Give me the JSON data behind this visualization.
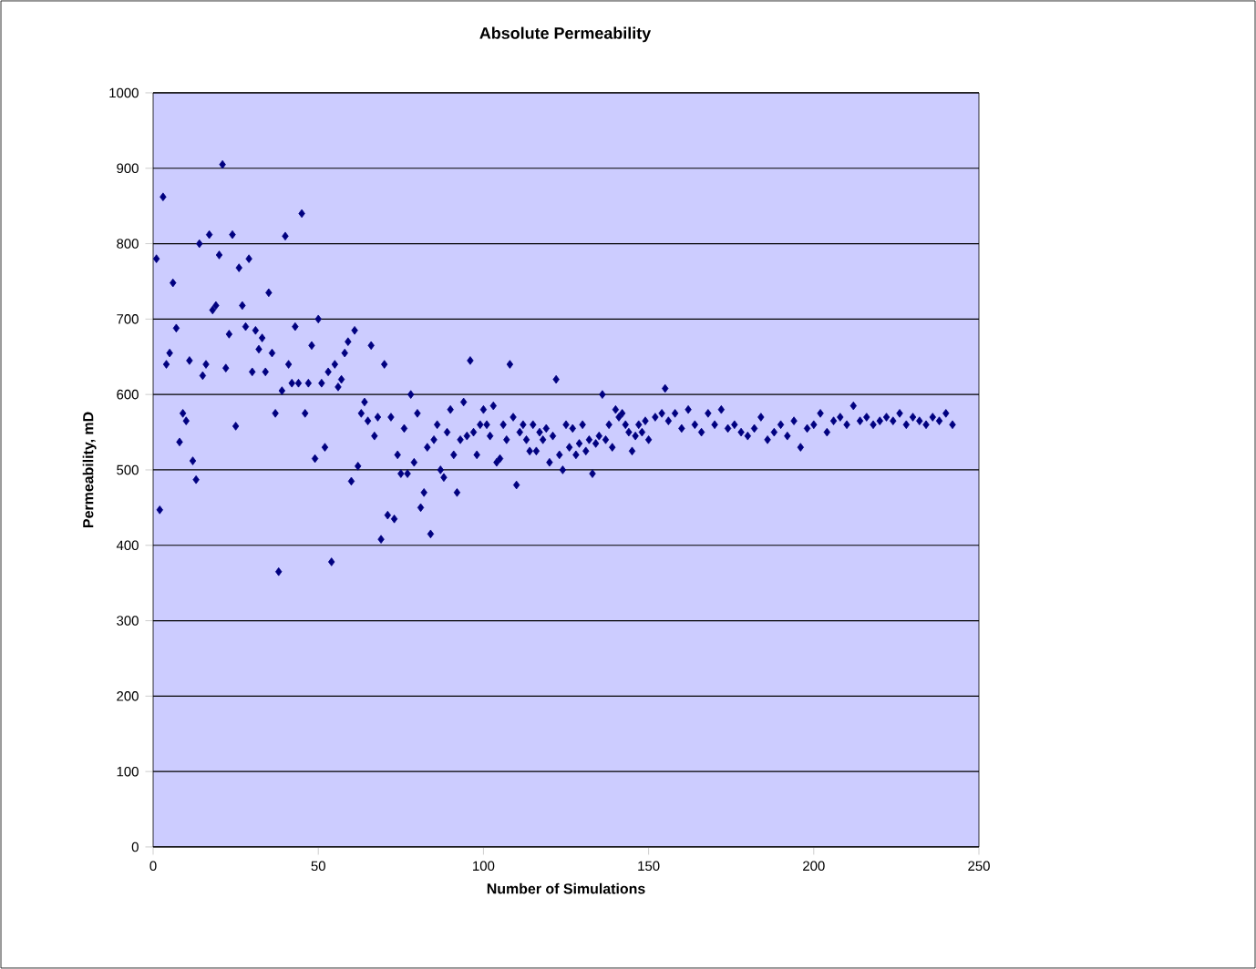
{
  "chart_data": {
    "type": "scatter",
    "title": "Absolute Permeability",
    "xlabel": "Number of Simulations",
    "ylabel": "Permeability, mD",
    "x": [
      1,
      2,
      3,
      4,
      5,
      6,
      7,
      8,
      9,
      10,
      11,
      12,
      13,
      14,
      15,
      16,
      17,
      18,
      19,
      20,
      21,
      22,
      23,
      24,
      25,
      26,
      27,
      28,
      29,
      30,
      31,
      32,
      33,
      34,
      35,
      36,
      37,
      38,
      39,
      40,
      41,
      42,
      43,
      44,
      45,
      46,
      47,
      48,
      49,
      50,
      51,
      52,
      53,
      54,
      55,
      56,
      57,
      58,
      59,
      60,
      61,
      62,
      63,
      64,
      65,
      66,
      67,
      68,
      69,
      70,
      71,
      72,
      73,
      74,
      75,
      76,
      77,
      78,
      79,
      80,
      81,
      82,
      83,
      84,
      85,
      86,
      87,
      88,
      89,
      90,
      91,
      92,
      93,
      94,
      95,
      96,
      97,
      98,
      99,
      100,
      101,
      102,
      103,
      104,
      105,
      106,
      107,
      108,
      109,
      110,
      111,
      112,
      113,
      114,
      115,
      116,
      117,
      118,
      119,
      120,
      121,
      122,
      123,
      124,
      125,
      126,
      127,
      128,
      129,
      130,
      131,
      132,
      133,
      134,
      135,
      136,
      137,
      138,
      139,
      140,
      141,
      142,
      143,
      144,
      145,
      146,
      147,
      148,
      149,
      150,
      152,
      154,
      155,
      156,
      158,
      160,
      162,
      164,
      166,
      168,
      170,
      172,
      174,
      176,
      178,
      180,
      182,
      184,
      186,
      188,
      190,
      192,
      194,
      196,
      198,
      200,
      202,
      204,
      206,
      208,
      210,
      212,
      214,
      216,
      218,
      220,
      222,
      224,
      226,
      228,
      230,
      232,
      234,
      236,
      238,
      240,
      242
    ],
    "values": [
      780,
      447,
      862,
      640,
      655,
      748,
      688,
      537,
      575,
      565,
      645,
      512,
      487,
      800,
      625,
      640,
      812,
      712,
      718,
      785,
      905,
      635,
      680,
      812,
      558,
      768,
      718,
      690,
      780,
      630,
      685,
      660,
      675,
      630,
      735,
      655,
      575,
      365,
      605,
      810,
      640,
      615,
      690,
      615,
      840,
      575,
      615,
      665,
      515,
      700,
      615,
      530,
      630,
      378,
      640,
      610,
      620,
      655,
      670,
      485,
      685,
      505,
      575,
      590,
      565,
      665,
      545,
      570,
      408,
      640,
      440,
      570,
      435,
      520,
      495,
      555,
      495,
      600,
      510,
      575,
      450,
      470,
      530,
      415,
      540,
      560,
      500,
      490,
      550,
      580,
      520,
      470,
      540,
      590,
      545,
      645,
      550,
      520,
      560,
      580,
      560,
      545,
      585,
      510,
      515,
      560,
      540,
      640,
      570,
      480,
      550,
      560,
      540,
      525,
      560,
      525,
      550,
      540,
      555,
      510,
      545,
      620,
      520,
      500,
      560,
      530,
      555,
      520,
      535,
      560,
      525,
      540,
      495,
      535,
      545,
      600,
      540,
      560,
      530,
      580,
      570,
      575,
      560,
      550,
      525,
      545,
      560,
      550,
      565,
      540,
      570,
      575,
      608,
      565,
      575,
      555,
      580,
      560,
      550,
      575,
      560,
      580,
      555,
      560,
      550,
      545,
      555,
      570,
      540,
      550,
      560,
      545,
      565,
      530,
      555,
      560,
      575,
      550,
      565,
      570,
      560,
      585,
      565,
      570,
      560,
      565,
      570,
      565,
      575,
      560,
      570,
      565,
      560,
      570,
      565,
      575,
      560
    ],
    "color": "#000080",
    "marker": "diamond",
    "xlim": [
      0,
      250
    ],
    "ylim": [
      0,
      1000
    ],
    "xticks": [
      0,
      50,
      100,
      150,
      200,
      250
    ],
    "yticks": [
      0,
      100,
      200,
      300,
      400,
      500,
      600,
      700,
      800,
      900,
      1000
    ],
    "grid": "y"
  }
}
